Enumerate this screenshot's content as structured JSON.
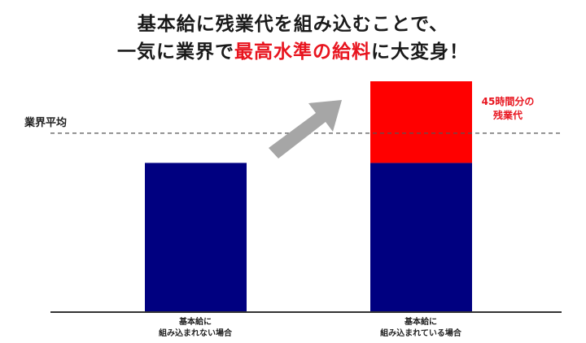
{
  "title": {
    "line1": "基本給に残業代を組み込むことで、",
    "line2_prefix": "一気に業界で",
    "line2_highlight": "最高水準の給料",
    "line2_suffix": "に大変身！"
  },
  "chart_data": {
    "type": "bar",
    "stacked": true,
    "categories": [
      [
        "基本給に",
        "組み込まれない場合"
      ],
      [
        "基本給に",
        "組み込まれている場合"
      ]
    ],
    "series": [
      {
        "values": [
          100,
          100
        ],
        "color": "#000080"
      },
      {
        "values": [
          0,
          55
        ],
        "color": "#ff0000"
      }
    ],
    "reference_line": {
      "label": "業界平均",
      "value": 120,
      "style": "dashed"
    },
    "annotation": {
      "lines": [
        "45時間分の",
        "残業代"
      ],
      "color": "#e8141e"
    },
    "arrow": {
      "color": "#a6a6a6",
      "direction": "up-right"
    },
    "ylim": [
      0,
      155
    ],
    "grid": false,
    "xlabel": "",
    "ylabel": ""
  }
}
